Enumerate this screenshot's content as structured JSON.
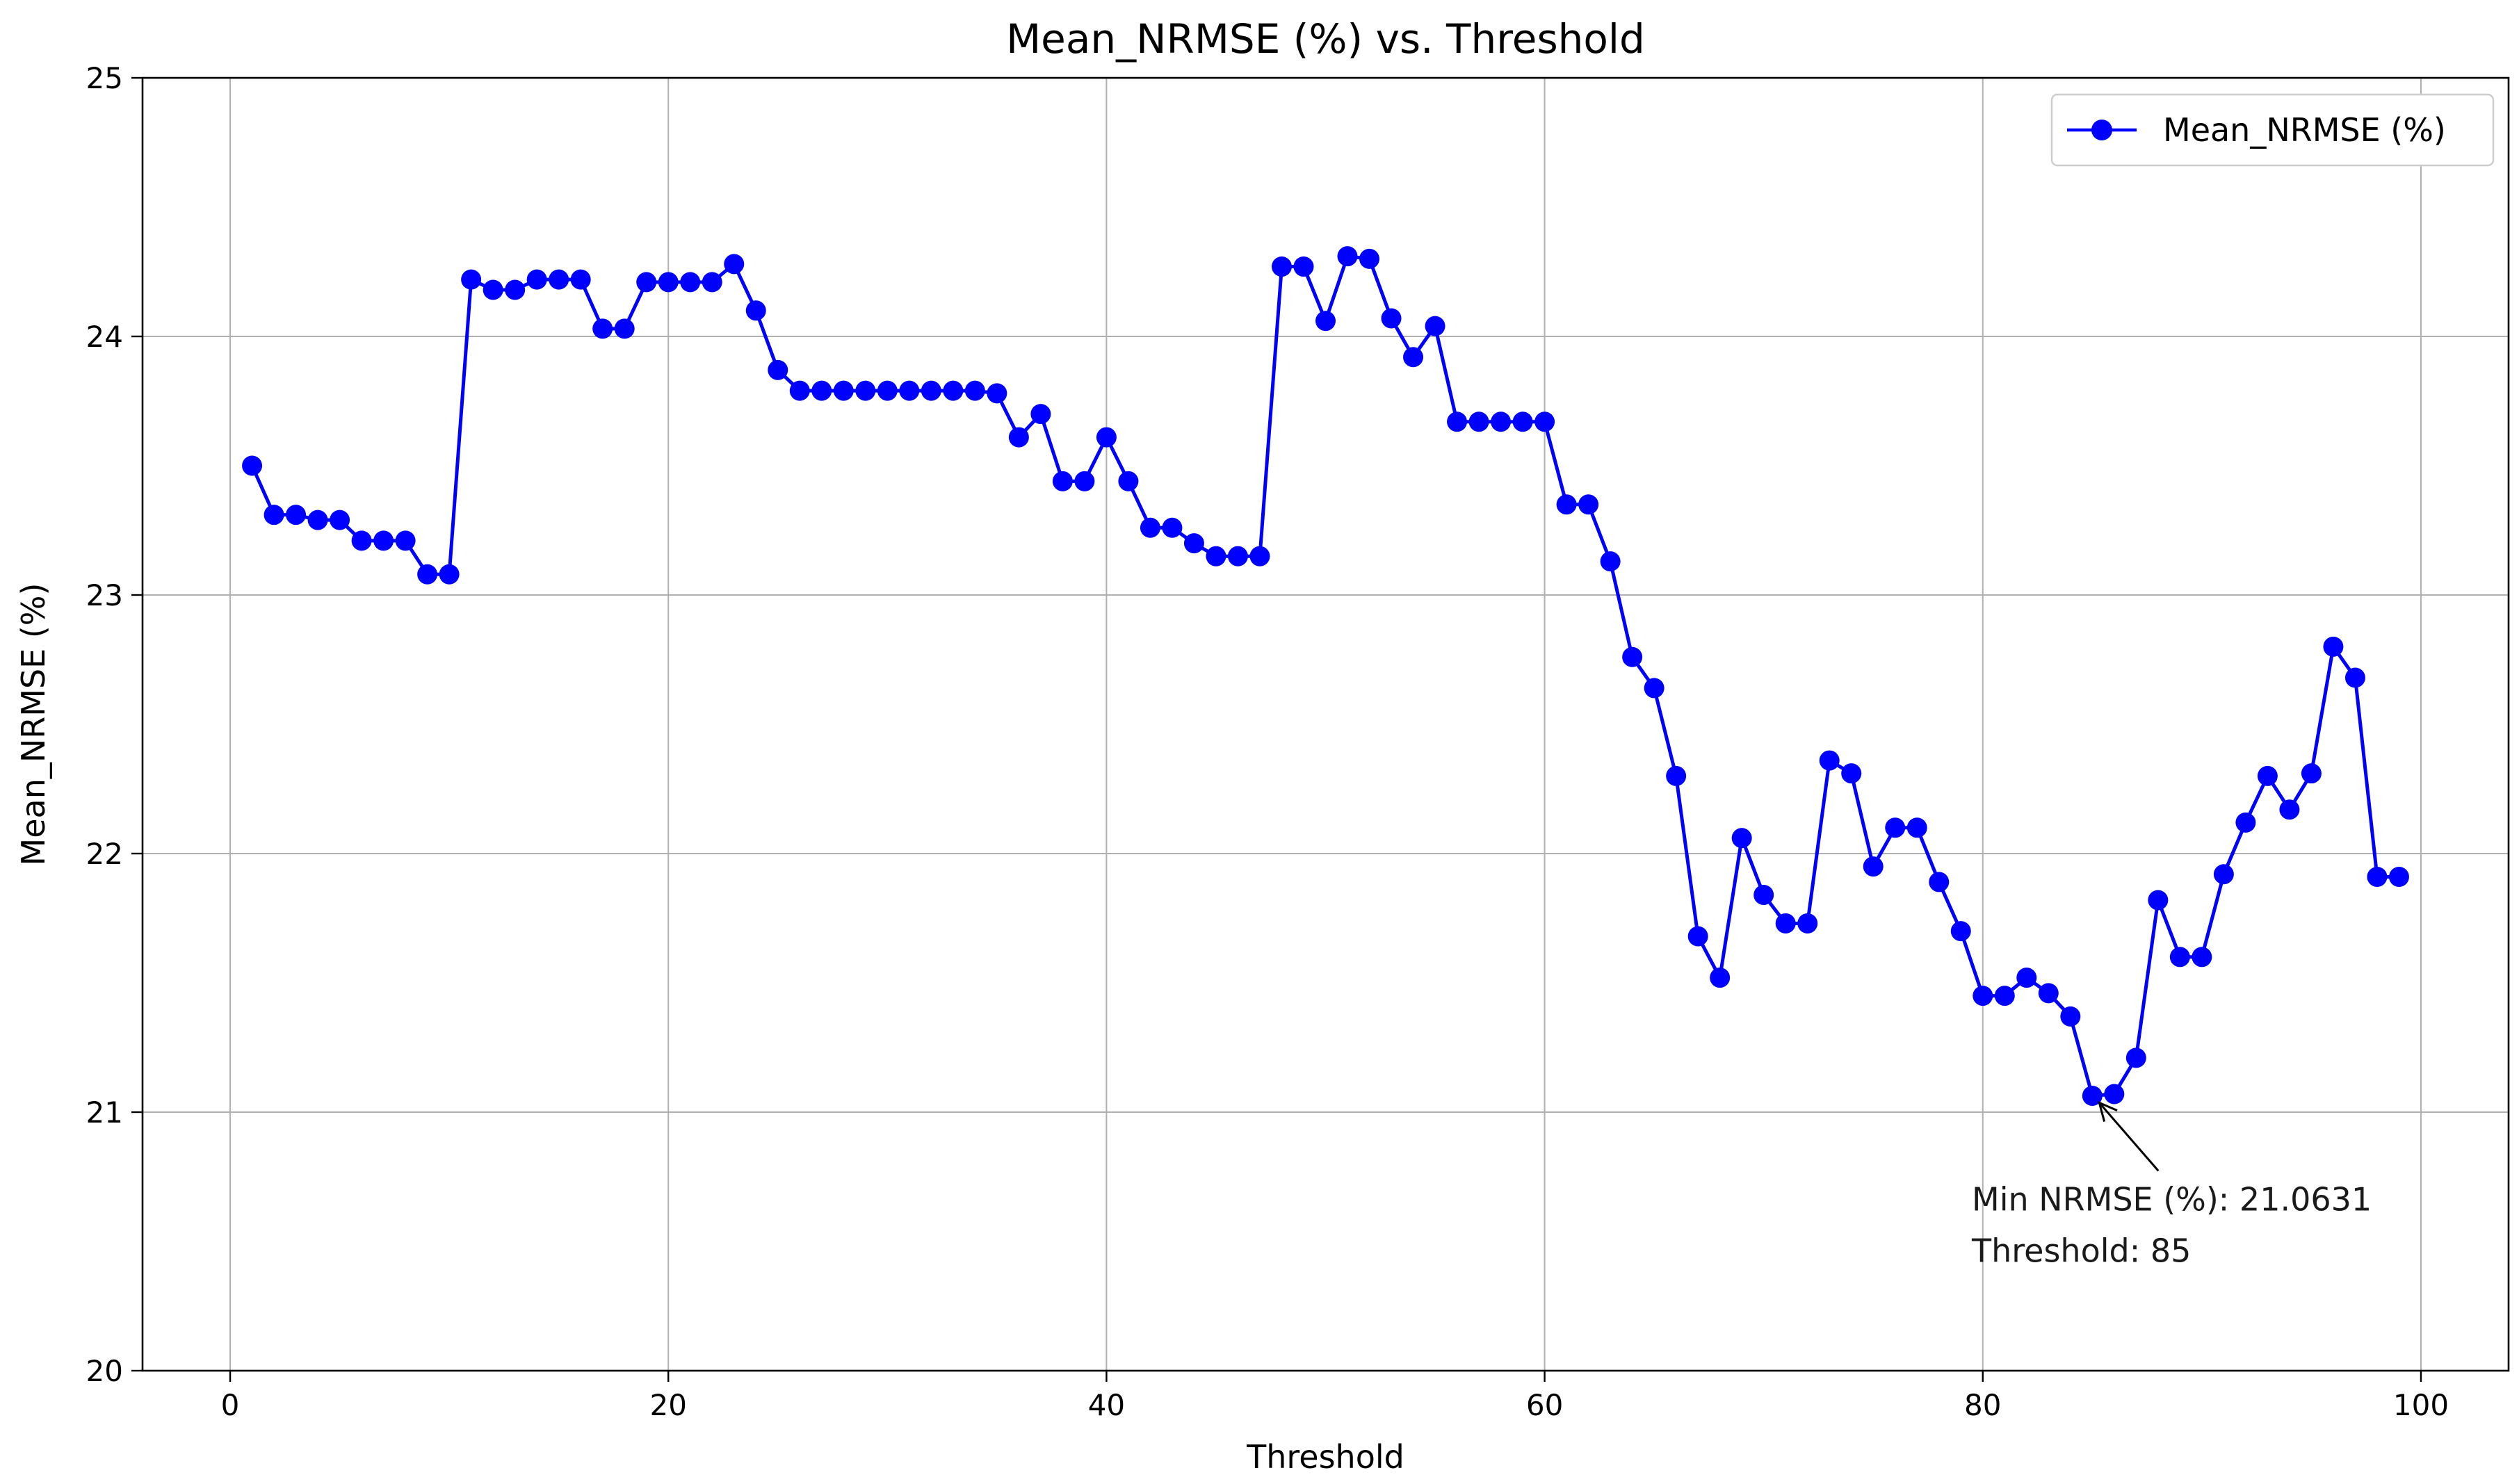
{
  "chart_data": {
    "type": "line",
    "title": "Mean_NRMSE (%) vs. Threshold",
    "xlabel": "Threshold",
    "ylabel": "Mean_NRMSE (%)",
    "xlim": [
      -4,
      104
    ],
    "ylim": [
      20,
      25
    ],
    "xticks": [
      0,
      20,
      40,
      60,
      80,
      100
    ],
    "yticks": [
      20,
      21,
      22,
      23,
      24,
      25
    ],
    "grid": true,
    "legend_position": "top-right",
    "series": [
      {
        "name": "Mean_NRMSE (%)",
        "color": "#0000ff",
        "marker": "circle",
        "x": [
          1,
          2,
          3,
          4,
          5,
          6,
          7,
          8,
          9,
          10,
          11,
          12,
          13,
          14,
          15,
          16,
          17,
          18,
          19,
          20,
          21,
          22,
          23,
          24,
          25,
          26,
          27,
          28,
          29,
          30,
          31,
          32,
          33,
          34,
          35,
          36,
          37,
          38,
          39,
          40,
          41,
          42,
          43,
          44,
          45,
          46,
          47,
          48,
          49,
          50,
          51,
          52,
          53,
          54,
          55,
          56,
          57,
          58,
          59,
          60,
          61,
          62,
          63,
          64,
          65,
          66,
          67,
          68,
          69,
          70,
          71,
          72,
          73,
          74,
          75,
          76,
          77,
          78,
          79,
          80,
          81,
          82,
          83,
          84,
          85,
          86,
          87,
          88,
          89,
          90,
          91,
          92,
          93,
          94,
          95,
          96,
          97,
          98,
          99
        ],
        "y": [
          23.5,
          23.31,
          23.31,
          23.29,
          23.29,
          23.21,
          23.21,
          23.21,
          23.08,
          23.08,
          24.22,
          24.18,
          24.18,
          24.22,
          24.22,
          24.22,
          24.03,
          24.03,
          24.21,
          24.21,
          24.21,
          24.21,
          24.28,
          24.1,
          23.87,
          23.79,
          23.79,
          23.79,
          23.79,
          23.79,
          23.79,
          23.79,
          23.79,
          23.79,
          23.78,
          23.61,
          23.7,
          23.44,
          23.44,
          23.61,
          23.44,
          23.26,
          23.26,
          23.2,
          23.15,
          23.15,
          23.15,
          24.27,
          24.27,
          24.06,
          24.31,
          24.3,
          24.07,
          23.92,
          24.04,
          23.67,
          23.67,
          23.67,
          23.67,
          23.67,
          23.35,
          23.35,
          23.13,
          22.76,
          22.64,
          22.3,
          21.68,
          21.52,
          22.06,
          21.84,
          21.73,
          21.73,
          22.36,
          22.31,
          21.95,
          22.1,
          22.1,
          21.89,
          21.7,
          21.45,
          21.45,
          21.52,
          21.46,
          21.37,
          21.0631,
          21.07,
          21.21,
          21.82,
          21.6,
          21.6,
          21.92,
          22.12,
          22.3,
          22.17,
          22.31,
          22.8,
          22.68,
          21.91,
          21.91
        ]
      }
    ],
    "annotation": {
      "line1": "Min NRMSE (%): 21.0631",
      "line2": "Threshold: 85",
      "x": 85,
      "y": 21.0631,
      "text_x": 79.5,
      "text_y": 20.62
    }
  }
}
